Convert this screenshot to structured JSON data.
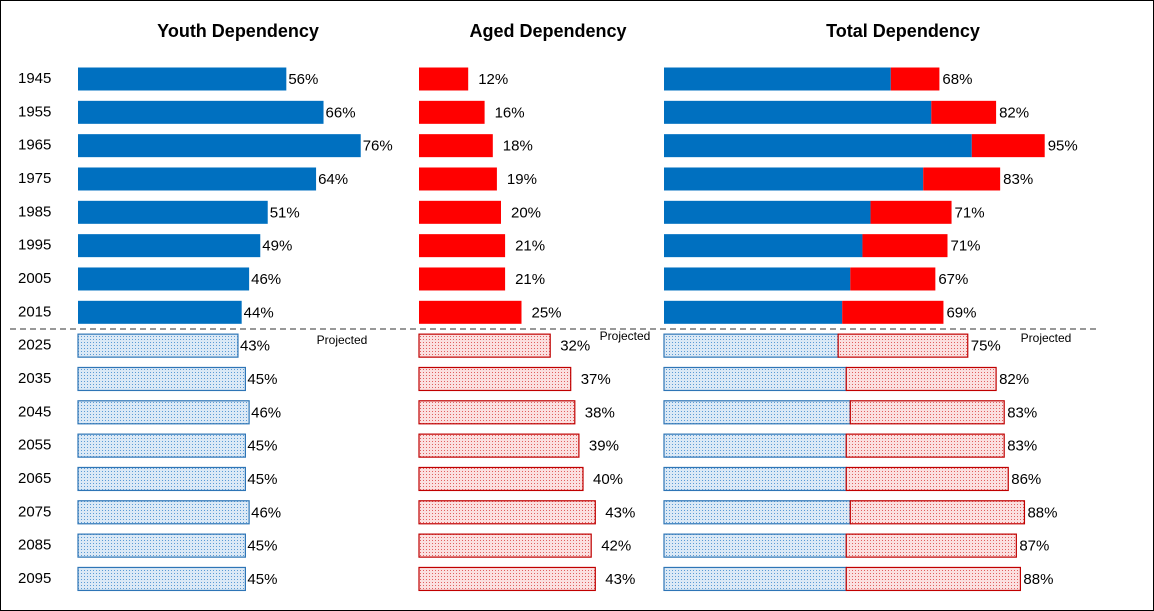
{
  "chart_data": [
    {
      "type": "bar",
      "title": "Youth Dependency",
      "categories": [
        "1945",
        "1955",
        "1965",
        "1975",
        "1985",
        "1995",
        "2005",
        "2015",
        "2025",
        "2035",
        "2045",
        "2055",
        "2065",
        "2075",
        "2085",
        "2095"
      ],
      "values": [
        56,
        66,
        76,
        64,
        51,
        49,
        46,
        44,
        43,
        45,
        46,
        45,
        45,
        46,
        45,
        45
      ],
      "value_labels": [
        "56%",
        "66%",
        "76%",
        "64%",
        "51%",
        "49%",
        "46%",
        "44%",
        "43%",
        "45%",
        "46%",
        "45%",
        "45%",
        "46%",
        "45%",
        "45%"
      ],
      "color": "#0070c0",
      "annotation": "Projected",
      "projected_from": "2025"
    },
    {
      "type": "bar",
      "title": "Aged Dependency",
      "categories": [
        "1945",
        "1955",
        "1965",
        "1975",
        "1985",
        "1995",
        "2005",
        "2015",
        "2025",
        "2035",
        "2045",
        "2055",
        "2065",
        "2075",
        "2085",
        "2095"
      ],
      "values": [
        12,
        16,
        18,
        19,
        20,
        21,
        21,
        25,
        32,
        37,
        38,
        39,
        40,
        43,
        42,
        43
      ],
      "value_labels": [
        "12%",
        "16%",
        "18%",
        "19%",
        "20%",
        "21%",
        "21%",
        "25%",
        "32%",
        "37%",
        "38%",
        "39%",
        "40%",
        "43%",
        "42%",
        "43%"
      ],
      "color": "#ff0000",
      "annotation": "Projected",
      "projected_from": "2025"
    },
    {
      "type": "stacked_bar",
      "title": "Total Dependency",
      "categories": [
        "1945",
        "1955",
        "1965",
        "1975",
        "1985",
        "1995",
        "2005",
        "2015",
        "2025",
        "2035",
        "2045",
        "2055",
        "2065",
        "2075",
        "2085",
        "2095"
      ],
      "series": [
        {
          "color": "#0070c0",
          "values": [
            56,
            66,
            76,
            64,
            51,
            49,
            46,
            44,
            43,
            45,
            46,
            45,
            45,
            46,
            45,
            45
          ]
        },
        {
          "color": "#ff0000",
          "values": [
            12,
            16,
            18,
            19,
            20,
            21,
            21,
            25,
            32,
            37,
            38,
            39,
            40,
            43,
            42,
            43
          ]
        }
      ],
      "totals": [
        68,
        82,
        95,
        83,
        71,
        71,
        67,
        69,
        75,
        82,
        83,
        83,
        86,
        88,
        87,
        88
      ],
      "total_labels": [
        "68%",
        "82%",
        "95%",
        "83%",
        "71%",
        "71%",
        "67%",
        "69%",
        "75%",
        "82%",
        "83%",
        "83%",
        "86%",
        "88%",
        "87%",
        "88%"
      ],
      "annotation": "Projected",
      "projected_from": "2025"
    }
  ]
}
